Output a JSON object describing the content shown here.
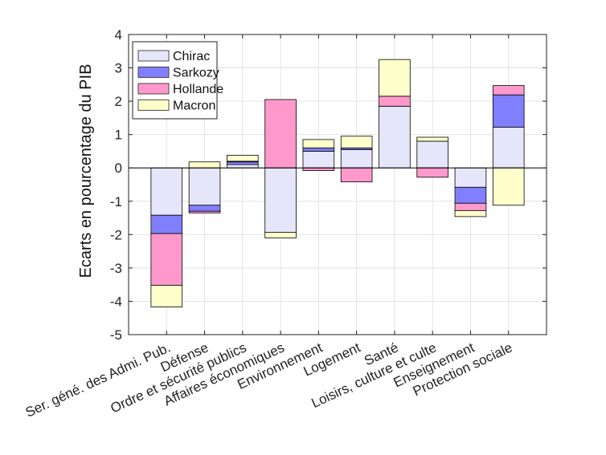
{
  "chart_data": {
    "type": "bar",
    "stacked": true,
    "title": "",
    "xlabel": "",
    "ylabel": "Ecarts en pourcentage du PIB",
    "ylim": [
      -5,
      4
    ],
    "yticks": [
      -5,
      -4,
      -3,
      -2,
      -1,
      0,
      1,
      2,
      3,
      4
    ],
    "grid": true,
    "legend_position": "top-left",
    "categories": [
      "Ser. géné. des Admi. Pub.",
      "Défense",
      "Ordre et sécurité publics",
      "Affaires économiques",
      "Environnement",
      "Logement",
      "Santé",
      "Loisirs, culture et culte",
      "Enseignement",
      "Protection sociale"
    ],
    "series": [
      {
        "name": "Chirac",
        "color": "#e6e6fa",
        "values": [
          -1.42,
          -1.12,
          0.1,
          -1.93,
          0.5,
          0.55,
          1.85,
          0.8,
          -0.58,
          1.22
        ]
      },
      {
        "name": "Sarkozy",
        "color": "#8080ff",
        "values": [
          -0.55,
          -0.18,
          0.08,
          0.0,
          0.1,
          0.05,
          0.0,
          0.0,
          -0.48,
          0.97
        ]
      },
      {
        "name": "Hollande",
        "color": "#ff99cc",
        "values": [
          -1.55,
          -0.05,
          0.02,
          2.05,
          -0.08,
          -0.42,
          0.3,
          -0.28,
          -0.22,
          0.28
        ]
      },
      {
        "name": "Macron",
        "color": "#ffffcc",
        "values": [
          -0.65,
          0.18,
          0.18,
          -0.17,
          0.25,
          0.35,
          1.1,
          0.12,
          -0.18,
          -1.12
        ]
      }
    ]
  }
}
